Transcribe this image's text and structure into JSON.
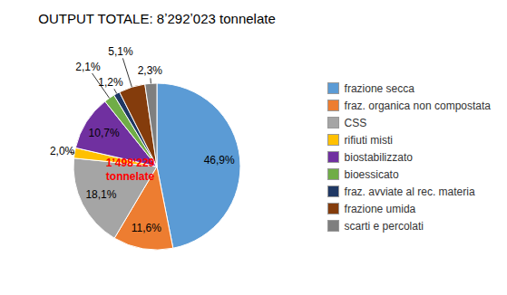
{
  "chart_data": {
    "type": "pie",
    "title": "OUTPUT TOTALE: 8ʼ292ʼ023 tonnelate",
    "categories": [
      "frazione secca",
      "fraz. organica non compostata",
      "CSS",
      "rifiuti misti",
      "biostabilizzato",
      "bioessicato",
      "fraz. avviate al rec. materia",
      "frazione umida",
      "scarti e percolati"
    ],
    "values": [
      46.9,
      11.6,
      18.1,
      2.0,
      10.7,
      2.1,
      1.2,
      5.1,
      2.3
    ],
    "value_labels": [
      "46,9%",
      "11,6%",
      "18,1%",
      "2,0%",
      "10,7%",
      "2,1%",
      "1,2%",
      "5,1%",
      "2,3%"
    ],
    "colors": [
      "#5B9BD5",
      "#ED7D31",
      "#A5A5A5",
      "#FFC000",
      "#7030A0",
      "#70AD47",
      "#1F3864",
      "#843C0C",
      "#7F7F7F"
    ],
    "data_labels": true,
    "legend": "right",
    "annotations": [
      {
        "text": "1ʼ498ʼ229\ntonnelate",
        "color": "#FF0000"
      }
    ]
  }
}
